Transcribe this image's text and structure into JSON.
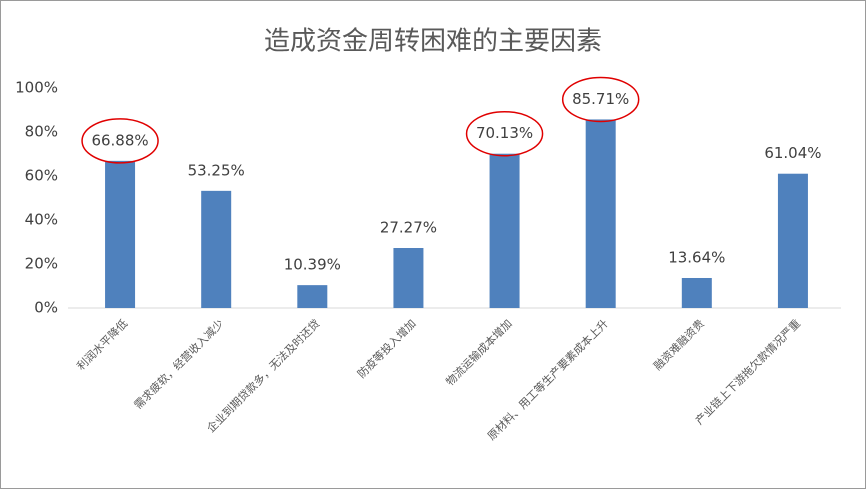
{
  "chart_data": {
    "type": "bar",
    "title": "造成资金周转困难的主要因素",
    "categories": [
      "利润水平降低",
      "需求疲软，经营收入减少",
      "企业到期贷款多，无法及时还贷",
      "防疫等投入增加",
      "物流运输成本增加",
      "原材料、用工等生产要素成本上升",
      "融资难融资贵",
      "产业链上下游拖欠款情况严重"
    ],
    "values": [
      66.88,
      53.25,
      10.39,
      27.27,
      70.13,
      85.71,
      13.64,
      61.04
    ],
    "value_labels": [
      "66.88%",
      "53.25%",
      "10.39%",
      "27.27%",
      "70.13%",
      "85.71%",
      "13.64%",
      "61.04%"
    ],
    "color": "#4f81bd",
    "ylim": [
      0,
      100
    ],
    "yticks": [
      {
        "value": 0,
        "label": "0%"
      },
      {
        "value": 20,
        "label": "20%"
      },
      {
        "value": 40,
        "label": "40%"
      },
      {
        "value": 60,
        "label": "60%"
      },
      {
        "value": 80,
        "label": "80%"
      },
      {
        "value": 100,
        "label": "100%"
      }
    ],
    "grid": false,
    "highlight": [
      0,
      4,
      5
    ],
    "highlight_color": "#e00000"
  }
}
